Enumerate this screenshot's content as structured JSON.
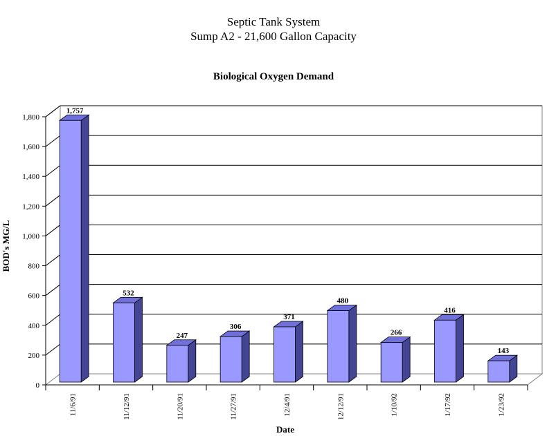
{
  "chart_data": {
    "type": "bar",
    "title": "Septic Tank System",
    "subtitle": "Sump A2 - 21,600 Gallon Capacity",
    "chart_title": "Biological Oxygen Demand",
    "xlabel": "Date",
    "ylabel": "BOD's MG/L",
    "categories": [
      "11/6/91",
      "11/12/91",
      "11/20/91",
      "11/27/91",
      "12/4/91",
      "12/12/91",
      "1/10/92",
      "1/17/92",
      "1/23/92"
    ],
    "values": [
      1757,
      532,
      247,
      306,
      371,
      480,
      266,
      416,
      143
    ],
    "data_labels": [
      "1,757",
      "532",
      "247",
      "306",
      "371",
      "480",
      "266",
      "416",
      "143"
    ],
    "yticks": [
      "0",
      "200",
      "400",
      "600",
      "800",
      "1,000",
      "1,200",
      "1,400",
      "1,600",
      "1,800"
    ],
    "ylim": [
      0,
      1800
    ],
    "grid": true,
    "legend": "none",
    "colors": {
      "bar_front": "#9999ff",
      "bar_top": "#7070dd",
      "bar_side": "#454596",
      "grid": "#000000"
    }
  }
}
